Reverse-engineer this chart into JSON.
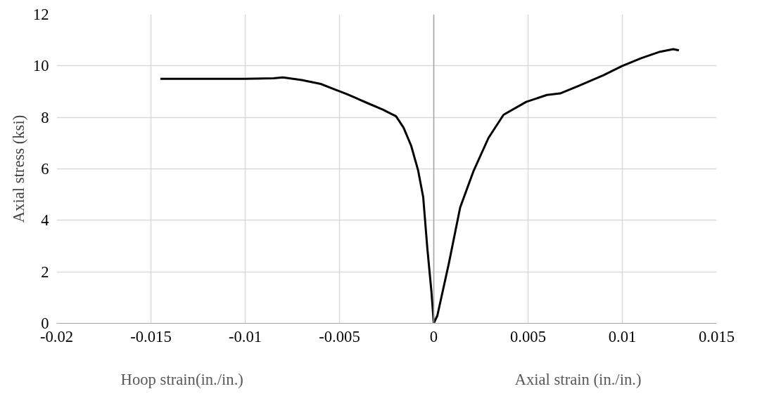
{
  "chart_data": {
    "type": "line",
    "ylabel": "Axial stress (ksi)",
    "annotations": [
      "Hoop strain(in./in.)",
      "Axial strain (in./in.)"
    ],
    "xlim": [
      -0.02,
      0.015
    ],
    "xticks": [
      -0.02,
      -0.015,
      -0.01,
      -0.005,
      0,
      0.005,
      0.01,
      0.015
    ],
    "ylim": [
      0,
      12
    ],
    "yticks": [
      0,
      2,
      4,
      6,
      8,
      10,
      12
    ],
    "grid": true,
    "marker": "none",
    "line_style": "solid",
    "ref_lines": [
      {
        "axis": "x",
        "value": 0,
        "label": null,
        "color": "#a6a6a6"
      }
    ],
    "series": [
      {
        "color": "#000000",
        "x": [
          -0.0145,
          -0.012,
          -0.01,
          -0.0085,
          -0.008,
          -0.007,
          -0.006,
          -0.0053,
          -0.0046,
          -0.0035,
          -0.0027,
          -0.002,
          -0.0016,
          -0.0012,
          -0.00083,
          -0.00056,
          -0.00034,
          -0.00012,
          0,
          0.00019,
          0.0008,
          0.0014,
          0.0021,
          0.0029,
          0.0037,
          0.0049,
          0.006,
          0.0067,
          0.0077,
          0.009,
          0.01,
          0.011,
          0.012,
          0.0127,
          0.013
        ],
        "values": [
          9.5,
          9.5,
          9.5,
          9.52,
          9.55,
          9.45,
          9.3,
          9.1,
          8.9,
          8.55,
          8.3,
          8.04,
          7.6,
          6.9,
          5.94,
          4.9,
          2.9,
          1.2,
          0,
          0.3,
          2.33,
          4.5,
          5.9,
          7.2,
          8.1,
          8.6,
          8.87,
          8.93,
          9.23,
          9.64,
          10.0,
          10.3,
          10.55,
          10.65,
          10.6
        ]
      }
    ]
  }
}
